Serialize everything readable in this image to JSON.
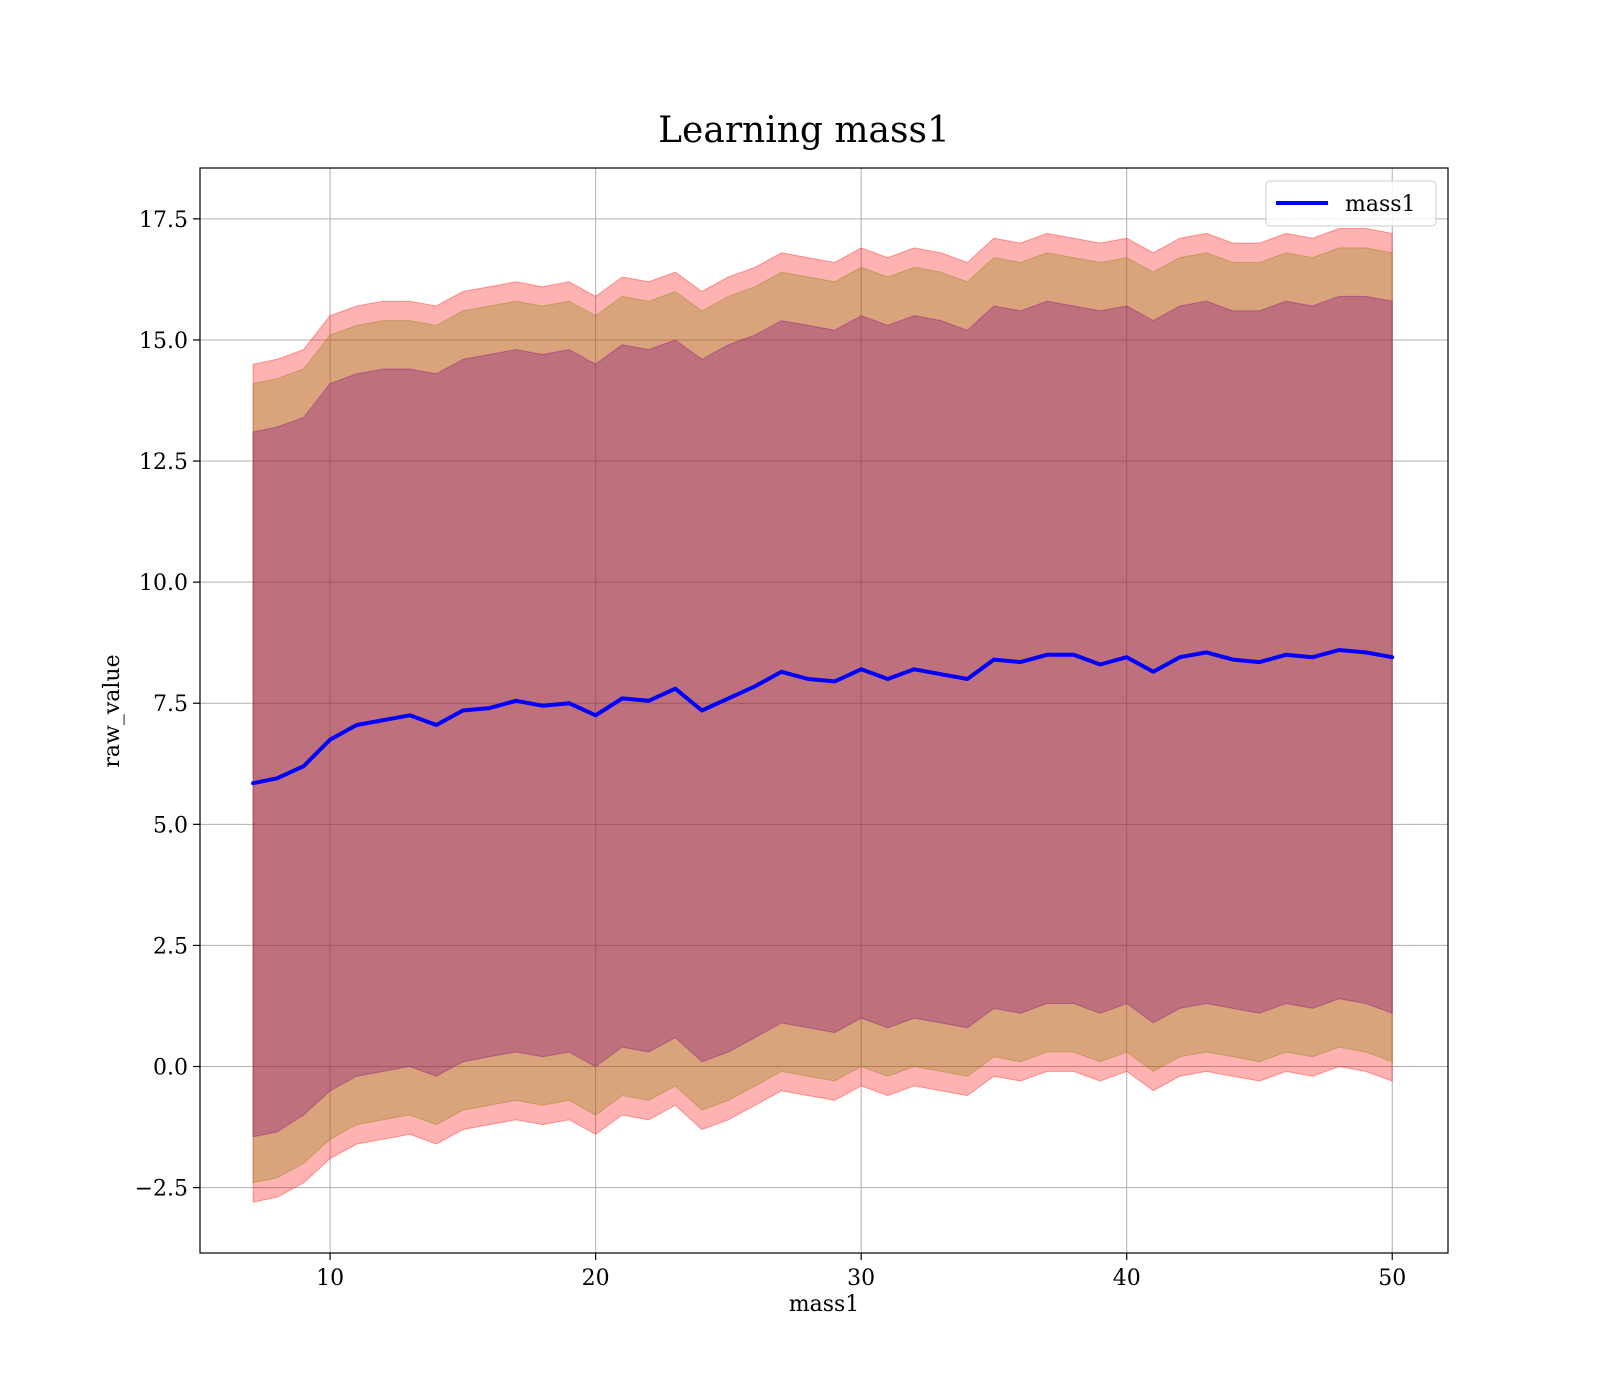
{
  "chart_data": {
    "type": "area",
    "title": "Learning mass1",
    "xlabel": "mass1",
    "ylabel": "raw_value",
    "xlim": [
      5.1,
      52.1
    ],
    "ylim": [
      -3.85,
      18.55
    ],
    "grid": true,
    "legend_position": "top-right",
    "x_ticks": [
      10,
      20,
      30,
      40,
      50
    ],
    "x_tick_labels": [
      "10",
      "20",
      "30",
      "40",
      "50"
    ],
    "y_ticks": [
      -2.5,
      0,
      2.5,
      5,
      7.5,
      10,
      12.5,
      15,
      17.5
    ],
    "y_tick_labels": [
      "−2.5",
      "0.0",
      "2.5",
      "5.0",
      "7.5",
      "10.0",
      "12.5",
      "15.0",
      "17.5"
    ],
    "x": [
      7.1,
      8.0,
      9.0,
      10.0,
      11.0,
      12.0,
      13.0,
      14.0,
      15.0,
      16.0,
      17.0,
      18.0,
      19.0,
      20.0,
      21.0,
      22.0,
      23.0,
      24.0,
      25.0,
      26.0,
      27.0,
      28.0,
      29.0,
      30.0,
      31.0,
      32.0,
      33.0,
      34.0,
      35.0,
      36.0,
      37.0,
      38.0,
      39.0,
      40.0,
      41.0,
      42.0,
      43.0,
      44.0,
      45.0,
      46.0,
      47.0,
      48.0,
      49.0,
      50.0
    ],
    "series": [
      {
        "name": "mass1",
        "color": "#0000ff",
        "values": [
          5.85,
          5.95,
          6.2,
          6.75,
          7.05,
          7.15,
          7.25,
          7.05,
          7.35,
          7.4,
          7.55,
          7.45,
          7.5,
          7.25,
          7.6,
          7.55,
          7.8,
          7.35,
          7.6,
          7.85,
          8.15,
          8.0,
          7.95,
          8.2,
          8.0,
          8.2,
          8.1,
          8.0,
          8.4,
          8.35,
          8.5,
          8.5,
          8.3,
          8.45,
          8.15,
          8.45,
          8.55,
          8.4,
          8.35,
          8.5,
          8.45,
          8.6,
          8.55,
          8.45
        ]
      }
    ],
    "bands": [
      {
        "color": "#ff0000",
        "opacity": 0.3,
        "upper": [
          14.5,
          14.6,
          14.8,
          15.5,
          15.7,
          15.8,
          15.8,
          15.7,
          16.0,
          16.1,
          16.2,
          16.1,
          16.2,
          15.9,
          16.3,
          16.2,
          16.4,
          16.0,
          16.3,
          16.5,
          16.8,
          16.7,
          16.6,
          16.9,
          16.7,
          16.9,
          16.8,
          16.6,
          17.1,
          17.0,
          17.2,
          17.1,
          17.0,
          17.1,
          16.8,
          17.1,
          17.2,
          17.0,
          17.0,
          17.2,
          17.1,
          17.3,
          17.3,
          17.2
        ],
        "lower": [
          -2.8,
          -2.7,
          -2.4,
          -1.9,
          -1.6,
          -1.5,
          -1.4,
          -1.6,
          -1.3,
          -1.2,
          -1.1,
          -1.2,
          -1.1,
          -1.4,
          -1.0,
          -1.1,
          -0.8,
          -1.3,
          -1.1,
          -0.8,
          -0.5,
          -0.6,
          -0.7,
          -0.4,
          -0.6,
          -0.4,
          -0.5,
          -0.6,
          -0.2,
          -0.3,
          -0.1,
          -0.1,
          -0.3,
          -0.1,
          -0.5,
          -0.2,
          -0.1,
          -0.2,
          -0.3,
          -0.1,
          -0.2,
          0.0,
          -0.1,
          -0.3
        ]
      },
      {
        "color": "#808000",
        "opacity": 0.3,
        "upper": [
          14.1,
          14.2,
          14.4,
          15.1,
          15.3,
          15.4,
          15.4,
          15.3,
          15.6,
          15.7,
          15.8,
          15.7,
          15.8,
          15.5,
          15.9,
          15.8,
          16.0,
          15.6,
          15.9,
          16.1,
          16.4,
          16.3,
          16.2,
          16.5,
          16.3,
          16.5,
          16.4,
          16.2,
          16.7,
          16.6,
          16.8,
          16.7,
          16.6,
          16.7,
          16.4,
          16.7,
          16.8,
          16.6,
          16.6,
          16.8,
          16.7,
          16.9,
          16.9,
          16.8
        ],
        "lower": [
          -2.4,
          -2.3,
          -2.0,
          -1.5,
          -1.2,
          -1.1,
          -1.0,
          -1.2,
          -0.9,
          -0.8,
          -0.7,
          -0.8,
          -0.7,
          -1.0,
          -0.6,
          -0.7,
          -0.4,
          -0.9,
          -0.7,
          -0.4,
          -0.1,
          -0.2,
          -0.3,
          0.0,
          -0.2,
          0.0,
          -0.1,
          -0.2,
          0.2,
          0.1,
          0.3,
          0.3,
          0.1,
          0.3,
          -0.1,
          0.2,
          0.3,
          0.2,
          0.1,
          0.3,
          0.2,
          0.4,
          0.3,
          0.1
        ]
      },
      {
        "color": "#800080",
        "opacity": 0.3,
        "upper": [
          13.1,
          13.2,
          13.4,
          14.1,
          14.3,
          14.4,
          14.4,
          14.3,
          14.6,
          14.7,
          14.8,
          14.7,
          14.8,
          14.5,
          14.9,
          14.8,
          15.0,
          14.6,
          14.9,
          15.1,
          15.4,
          15.3,
          15.2,
          15.5,
          15.3,
          15.5,
          15.4,
          15.2,
          15.7,
          15.6,
          15.8,
          15.7,
          15.6,
          15.7,
          15.4,
          15.7,
          15.8,
          15.6,
          15.6,
          15.8,
          15.7,
          15.9,
          15.9,
          15.8
        ],
        "lower": [
          -1.45,
          -1.35,
          -1.0,
          -0.5,
          -0.2,
          -0.1,
          0.0,
          -0.2,
          0.1,
          0.2,
          0.3,
          0.2,
          0.3,
          0.0,
          0.4,
          0.3,
          0.6,
          0.1,
          0.3,
          0.6,
          0.9,
          0.8,
          0.7,
          1.0,
          0.8,
          1.0,
          0.9,
          0.8,
          1.2,
          1.1,
          1.3,
          1.3,
          1.1,
          1.3,
          0.9,
          1.2,
          1.3,
          1.2,
          1.1,
          1.3,
          1.2,
          1.4,
          1.3,
          1.1
        ]
      }
    ]
  }
}
